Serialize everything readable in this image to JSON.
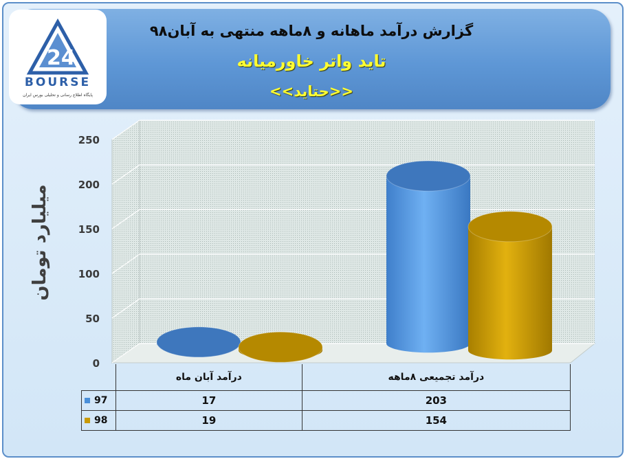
{
  "header": {
    "title": "گزارش درآمد ماهانه و ۸ماهه منتهی به آبان۹۸",
    "subtitle": "تاید واتر خاورمیانه",
    "ticker": "<<حتاید>>"
  },
  "logo": {
    "text": "BOURSE",
    "subtitle": "پایگاه اطلاع رسانی و تحلیلی بورس ایران"
  },
  "colors": {
    "series_97": "#4a8fd9",
    "series_98": "#c99a06"
  },
  "chart_data": {
    "type": "bar",
    "style": "3d-cylinder",
    "ylabel": "میلیارد تومان",
    "ylim": [
      0,
      250
    ],
    "yticks": [
      "0",
      "50",
      "100",
      "150",
      "200",
      "250"
    ],
    "categories": [
      "درآمد آبان ماه",
      "درآمد تجمیعی ۸ماهه"
    ],
    "series": [
      {
        "name": "97",
        "values": [
          17,
          203
        ]
      },
      {
        "name": "98",
        "values": [
          19,
          154
        ]
      }
    ],
    "legend": "data-table",
    "grid": true
  }
}
